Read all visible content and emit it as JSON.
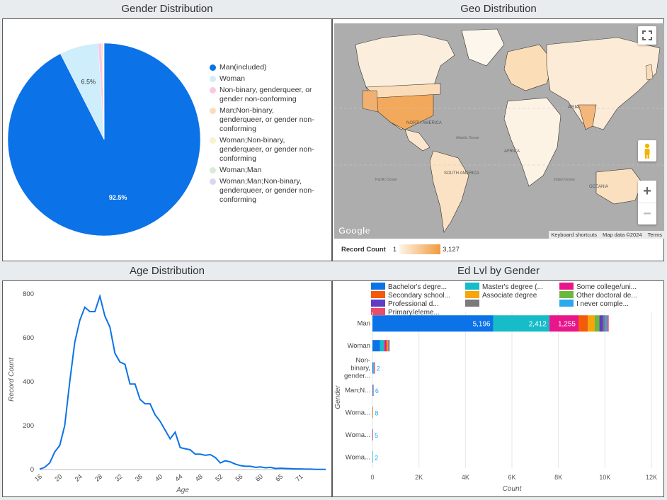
{
  "panels": {
    "gender": {
      "title": "Gender Distribution"
    },
    "geo": {
      "title": "Geo Distribution"
    },
    "age": {
      "title": "Age Distribution"
    },
    "edlvl": {
      "title": "Ed Lvl by Gender"
    }
  },
  "gender_legend": [
    {
      "label": "Man(included)",
      "color": "#0b72e7"
    },
    {
      "label": "Woman",
      "color": "#cdeefa"
    },
    {
      "label": "Non-binary, genderqueer, or gender non-conforming",
      "color": "#f9c9e4"
    },
    {
      "label": "Man;Non-binary, genderqueer, or gender non-conforming",
      "color": "#fbdcbf"
    },
    {
      "label": "Woman;Non-binary, genderqueer, or gender non-conforming",
      "color": "#fcefd0"
    },
    {
      "label": "Woman;Man",
      "color": "#d9ecd7"
    },
    {
      "label": "Woman;Man;Non-binary, genderqueer, or gender non-conforming",
      "color": "#ddd6f2"
    }
  ],
  "geo": {
    "google_logo": "Google",
    "attribution": [
      "Keyboard shortcuts",
      "Map data ©2024",
      "Terms"
    ],
    "legend_label": "Record Count",
    "legend_min": "1",
    "legend_max": "3,127",
    "continents": [
      "ASIA",
      "NORTH AMERICA",
      "Atlantic Ocean",
      "AFRICA",
      "SOUTH AMERICA",
      "Pacific Ocean",
      "Indian Ocean",
      "OCEANIA"
    ],
    "controls": {
      "fullscreen": "fullscreen-icon",
      "pegman": "pegman-icon",
      "zoom_in": "+",
      "zoom_out": "−"
    }
  },
  "chart_data": [
    {
      "type": "pie",
      "title": "Gender Distribution",
      "slices": [
        {
          "label": "Man(included)",
          "value": 92.5,
          "display": "92.5%",
          "color": "#0b72e7"
        },
        {
          "label": "Woman",
          "value": 6.5,
          "display": "6.5%",
          "color": "#cdeefa"
        },
        {
          "label": "Non-binary, genderqueer, or gender non-conforming",
          "value": 0.6,
          "display": "",
          "color": "#f9c9e4"
        },
        {
          "label": "Man;Non-binary, genderqueer, or gender non-conforming",
          "value": 0.2,
          "display": "",
          "color": "#fbdcbf"
        },
        {
          "label": "Woman;Non-binary, genderqueer, or gender non-conforming",
          "value": 0.1,
          "display": "",
          "color": "#fcefd0"
        },
        {
          "label": "Woman;Man",
          "value": 0.05,
          "display": "",
          "color": "#d9ecd7"
        },
        {
          "label": "Woman;Man;Non-binary, genderqueer, or gender non-conforming",
          "value": 0.05,
          "display": "",
          "color": "#ddd6f2"
        }
      ],
      "legend": "right"
    },
    {
      "type": "line",
      "title": "Age Distribution",
      "xlabel": "Age",
      "ylabel": "Record Count",
      "xlim": [
        16,
        73
      ],
      "ylim": [
        0,
        820
      ],
      "x_ticks": [
        "16",
        "20",
        "24",
        "28",
        "32",
        "36",
        "40",
        "44",
        "48",
        "52",
        "56",
        "60",
        "65",
        "71"
      ],
      "x_tick_values": [
        16,
        20,
        24,
        28,
        32,
        36,
        40,
        44,
        48,
        52,
        56,
        60,
        64,
        68
      ],
      "y_ticks": [
        0,
        200,
        400,
        600,
        800
      ],
      "x": [
        16,
        17,
        18,
        19,
        20,
        21,
        22,
        23,
        24,
        25,
        26,
        27,
        28,
        29,
        30,
        31,
        32,
        33,
        34,
        35,
        36,
        37,
        38,
        39,
        40,
        41,
        42,
        43,
        44,
        45,
        46,
        47,
        48,
        49,
        50,
        51,
        52,
        53,
        54,
        55,
        56,
        57,
        58,
        59,
        60,
        61,
        62,
        63,
        64,
        65,
        66,
        67,
        68,
        69,
        70,
        71,
        72,
        73
      ],
      "y": [
        2,
        10,
        30,
        80,
        110,
        200,
        400,
        580,
        680,
        740,
        720,
        720,
        790,
        700,
        650,
        530,
        490,
        480,
        390,
        390,
        320,
        300,
        300,
        250,
        220,
        180,
        140,
        170,
        100,
        95,
        90,
        70,
        70,
        65,
        68,
        55,
        30,
        40,
        35,
        25,
        18,
        15,
        15,
        10,
        12,
        8,
        10,
        5,
        6,
        5,
        4,
        3,
        3,
        2,
        2,
        1,
        1,
        1
      ],
      "color": "#0b72e7",
      "grid": false
    },
    {
      "type": "bar",
      "orientation": "horizontal",
      "stacked": true,
      "title": "Ed Lvl by Gender",
      "xlabel": "Count",
      "ylabel": "Gender",
      "xlim": [
        0,
        12000
      ],
      "x_ticks": [
        "0",
        "2K",
        "4K",
        "6K",
        "8K",
        "10K",
        "12K"
      ],
      "categories": [
        "Man",
        "Woman",
        "Non-binary, gender...",
        "Man;N...",
        "Woma...",
        "Woma...",
        "Woma..."
      ],
      "legend_labels": [
        "Bachelor's degre...",
        "Master's degree (...",
        "Some college/uni...",
        "Secondary school...",
        "Associate degree",
        "Other doctoral de...",
        "Professional d...",
        "",
        "I never comple...",
        "Primary/eleme..."
      ],
      "series": [
        {
          "name": "Bachelor's degre...",
          "color": "#0b72e7",
          "values": [
            5196,
            330,
            35,
            12,
            5,
            3,
            1
          ]
        },
        {
          "name": "Master's degree (...",
          "color": "#17bcc9",
          "values": [
            2412,
            180,
            20,
            6,
            3,
            1,
            1
          ]
        },
        {
          "name": "Some college/uni...",
          "color": "#e8168b",
          "values": [
            1255,
            90,
            10,
            4,
            2,
            1,
            0
          ]
        },
        {
          "name": "Secondary school...",
          "color": "#f35a0a",
          "values": [
            400,
            40,
            6,
            2,
            1,
            0,
            0
          ]
        },
        {
          "name": "Associate degree",
          "color": "#f6a50a",
          "values": [
            300,
            30,
            4,
            2,
            1,
            0,
            0
          ]
        },
        {
          "name": "Other doctoral de...",
          "color": "#6cb83d",
          "values": [
            200,
            20,
            3,
            1,
            0,
            0,
            0
          ]
        },
        {
          "name": "Professional d...",
          "color": "#5e3cc6",
          "values": [
            150,
            15,
            2,
            1,
            0,
            0,
            0
          ]
        },
        {
          "name": "",
          "color": "#7a7a7a",
          "values": [
            100,
            10,
            1,
            0,
            0,
            0,
            0
          ]
        },
        {
          "name": "I never comple...",
          "color": "#2aa9ec",
          "values": [
            80,
            8,
            1,
            0,
            0,
            0,
            0
          ]
        },
        {
          "name": "Primary/eleme...",
          "color": "#ec4b6b",
          "values": [
            70,
            7,
            1,
            0,
            0,
            0,
            0
          ]
        }
      ],
      "bar_labels": [
        "5,196",
        "2,412",
        "1,255"
      ],
      "minor_labels": [
        "",
        "",
        "2",
        "6",
        "8",
        "5",
        "2"
      ],
      "legend": "top"
    }
  ]
}
